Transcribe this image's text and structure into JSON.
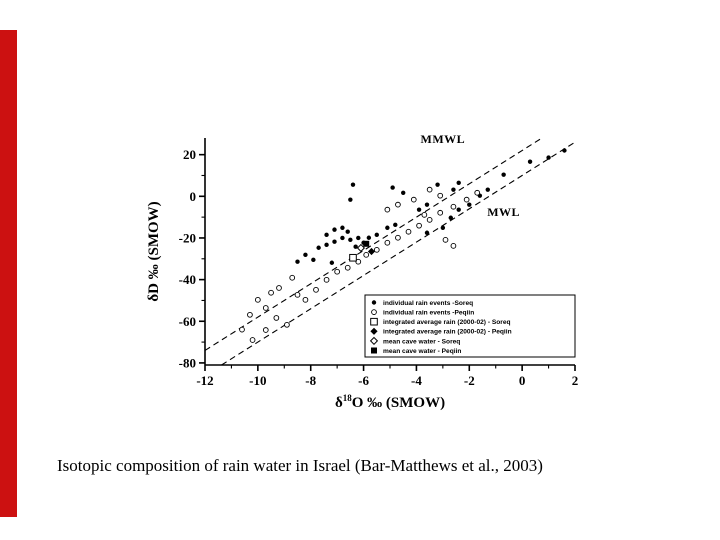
{
  "slide": {
    "caption": "Isotopic composition of rain water in Israel (Bar-Matthews et al., 2003)",
    "accent_color": "#cc1111"
  },
  "chart_data": {
    "type": "scatter",
    "xlabel": {
      "base": "δ",
      "sup": "18",
      "rest": "O ‰ (SMOW)"
    },
    "ylabel": "δD ‰ (SMOW)",
    "xlim": [
      -12,
      2
    ],
    "ylim": [
      -81,
      28
    ],
    "xticks": [
      -12,
      -10,
      -8,
      -6,
      -4,
      -2,
      0,
      2
    ],
    "yticks": [
      20,
      0,
      -20,
      -40,
      -60,
      -80
    ],
    "grid": false,
    "legend_position": "lower-right",
    "lines": [
      {
        "name": "MMWL",
        "slope": 8,
        "intercept": 22,
        "style": "dashed",
        "label_at": [
          -3.0,
          25.5
        ]
      },
      {
        "name": "MWL",
        "slope": 8,
        "intercept": 10,
        "style": "dashed",
        "label_at": [
          -0.7,
          -9.5
        ]
      }
    ],
    "series": [
      {
        "name": "individual rain events -Soreq",
        "marker": "circle-filled",
        "points": [
          [
            -6.4,
            5.6
          ],
          [
            -4.9,
            4.2
          ],
          [
            -4.5,
            1.7
          ],
          [
            -3.2,
            5.6
          ],
          [
            -2.6,
            3.2
          ],
          [
            -2.4,
            6.5
          ],
          [
            -1.3,
            3.2
          ],
          [
            -1.6,
            0.3
          ],
          [
            -0.7,
            10.4
          ],
          [
            0.3,
            16.6
          ],
          [
            1.0,
            18.6
          ],
          [
            1.6,
            22.0
          ],
          [
            -2.0,
            -4.0
          ],
          [
            -2.4,
            -6.4
          ],
          [
            -2.7,
            -10.3
          ],
          [
            -3.0,
            -15.1
          ],
          [
            -3.6,
            -17.5
          ],
          [
            -3.6,
            -4.0
          ],
          [
            -3.9,
            -6.4
          ],
          [
            -4.8,
            -13.7
          ],
          [
            -5.1,
            -15.1
          ],
          [
            -5.5,
            -18.5
          ],
          [
            -5.8,
            -19.9
          ],
          [
            -6.0,
            -22.3
          ],
          [
            -6.2,
            -20.0
          ],
          [
            -6.3,
            -24.2
          ],
          [
            -6.5,
            -20.9
          ],
          [
            -6.5,
            -1.6
          ],
          [
            -6.6,
            -17.0
          ],
          [
            -6.8,
            -15.1
          ],
          [
            -6.8,
            -20.0
          ],
          [
            -7.1,
            -16.0
          ],
          [
            -7.1,
            -21.8
          ],
          [
            -7.4,
            -18.5
          ],
          [
            -7.4,
            -23.3
          ],
          [
            -7.7,
            -24.7
          ],
          [
            -7.9,
            -30.5
          ],
          [
            -8.2,
            -28.1
          ],
          [
            -8.5,
            -31.4
          ],
          [
            -7.2,
            -31.9
          ]
        ]
      },
      {
        "name": "individual rain events -Peqiin",
        "marker": "circle-open",
        "points": [
          [
            -10.6,
            -64.0
          ],
          [
            -10.3,
            -56.9
          ],
          [
            -10.2,
            -69.0
          ],
          [
            -10.0,
            -49.7
          ],
          [
            -9.7,
            -53.6
          ],
          [
            -9.7,
            -64.2
          ],
          [
            -9.5,
            -46.3
          ],
          [
            -9.3,
            -58.4
          ],
          [
            -9.2,
            -44.0
          ],
          [
            -8.9,
            -61.7
          ],
          [
            -8.7,
            -39.1
          ],
          [
            -8.5,
            -47.3
          ],
          [
            -8.2,
            -49.7
          ],
          [
            -7.8,
            -44.9
          ],
          [
            -7.4,
            -40.1
          ],
          [
            -7.0,
            -36.2
          ],
          [
            -6.6,
            -34.3
          ],
          [
            -6.2,
            -31.4
          ],
          [
            -5.9,
            -28.1
          ],
          [
            -5.5,
            -25.7
          ],
          [
            -5.1,
            -22.3
          ],
          [
            -4.7,
            -19.9
          ],
          [
            -4.3,
            -17.0
          ],
          [
            -3.9,
            -14.1
          ],
          [
            -3.5,
            -11.3
          ],
          [
            -3.1,
            -7.9
          ],
          [
            -2.6,
            -5.0
          ],
          [
            -2.1,
            -1.6
          ],
          [
            -1.7,
            1.7
          ],
          [
            -3.5,
            3.2
          ],
          [
            -3.1,
            0.3
          ],
          [
            -4.1,
            -1.6
          ],
          [
            -4.7,
            -4.0
          ],
          [
            -5.1,
            -6.4
          ],
          [
            -3.7,
            -8.9
          ],
          [
            -2.9,
            -20.9
          ],
          [
            -2.6,
            -23.8
          ]
        ]
      },
      {
        "name": "integrated average rain (2000-02) - Soreq",
        "marker": "square-open",
        "points": [
          [
            -6.4,
            -29.5
          ]
        ]
      },
      {
        "name": "integrated average rain (2000-02) - Peqiin",
        "marker": "diamond-filled",
        "points": [
          [
            -5.7,
            -26.5
          ]
        ]
      },
      {
        "name": "mean cave water - Soreq",
        "marker": "diamond-open",
        "points": [
          [
            -6.1,
            -24.8
          ]
        ]
      },
      {
        "name": "mean cave water - Peqiin",
        "marker": "square-filled",
        "points": [
          [
            -5.9,
            -22.8
          ]
        ]
      }
    ]
  }
}
